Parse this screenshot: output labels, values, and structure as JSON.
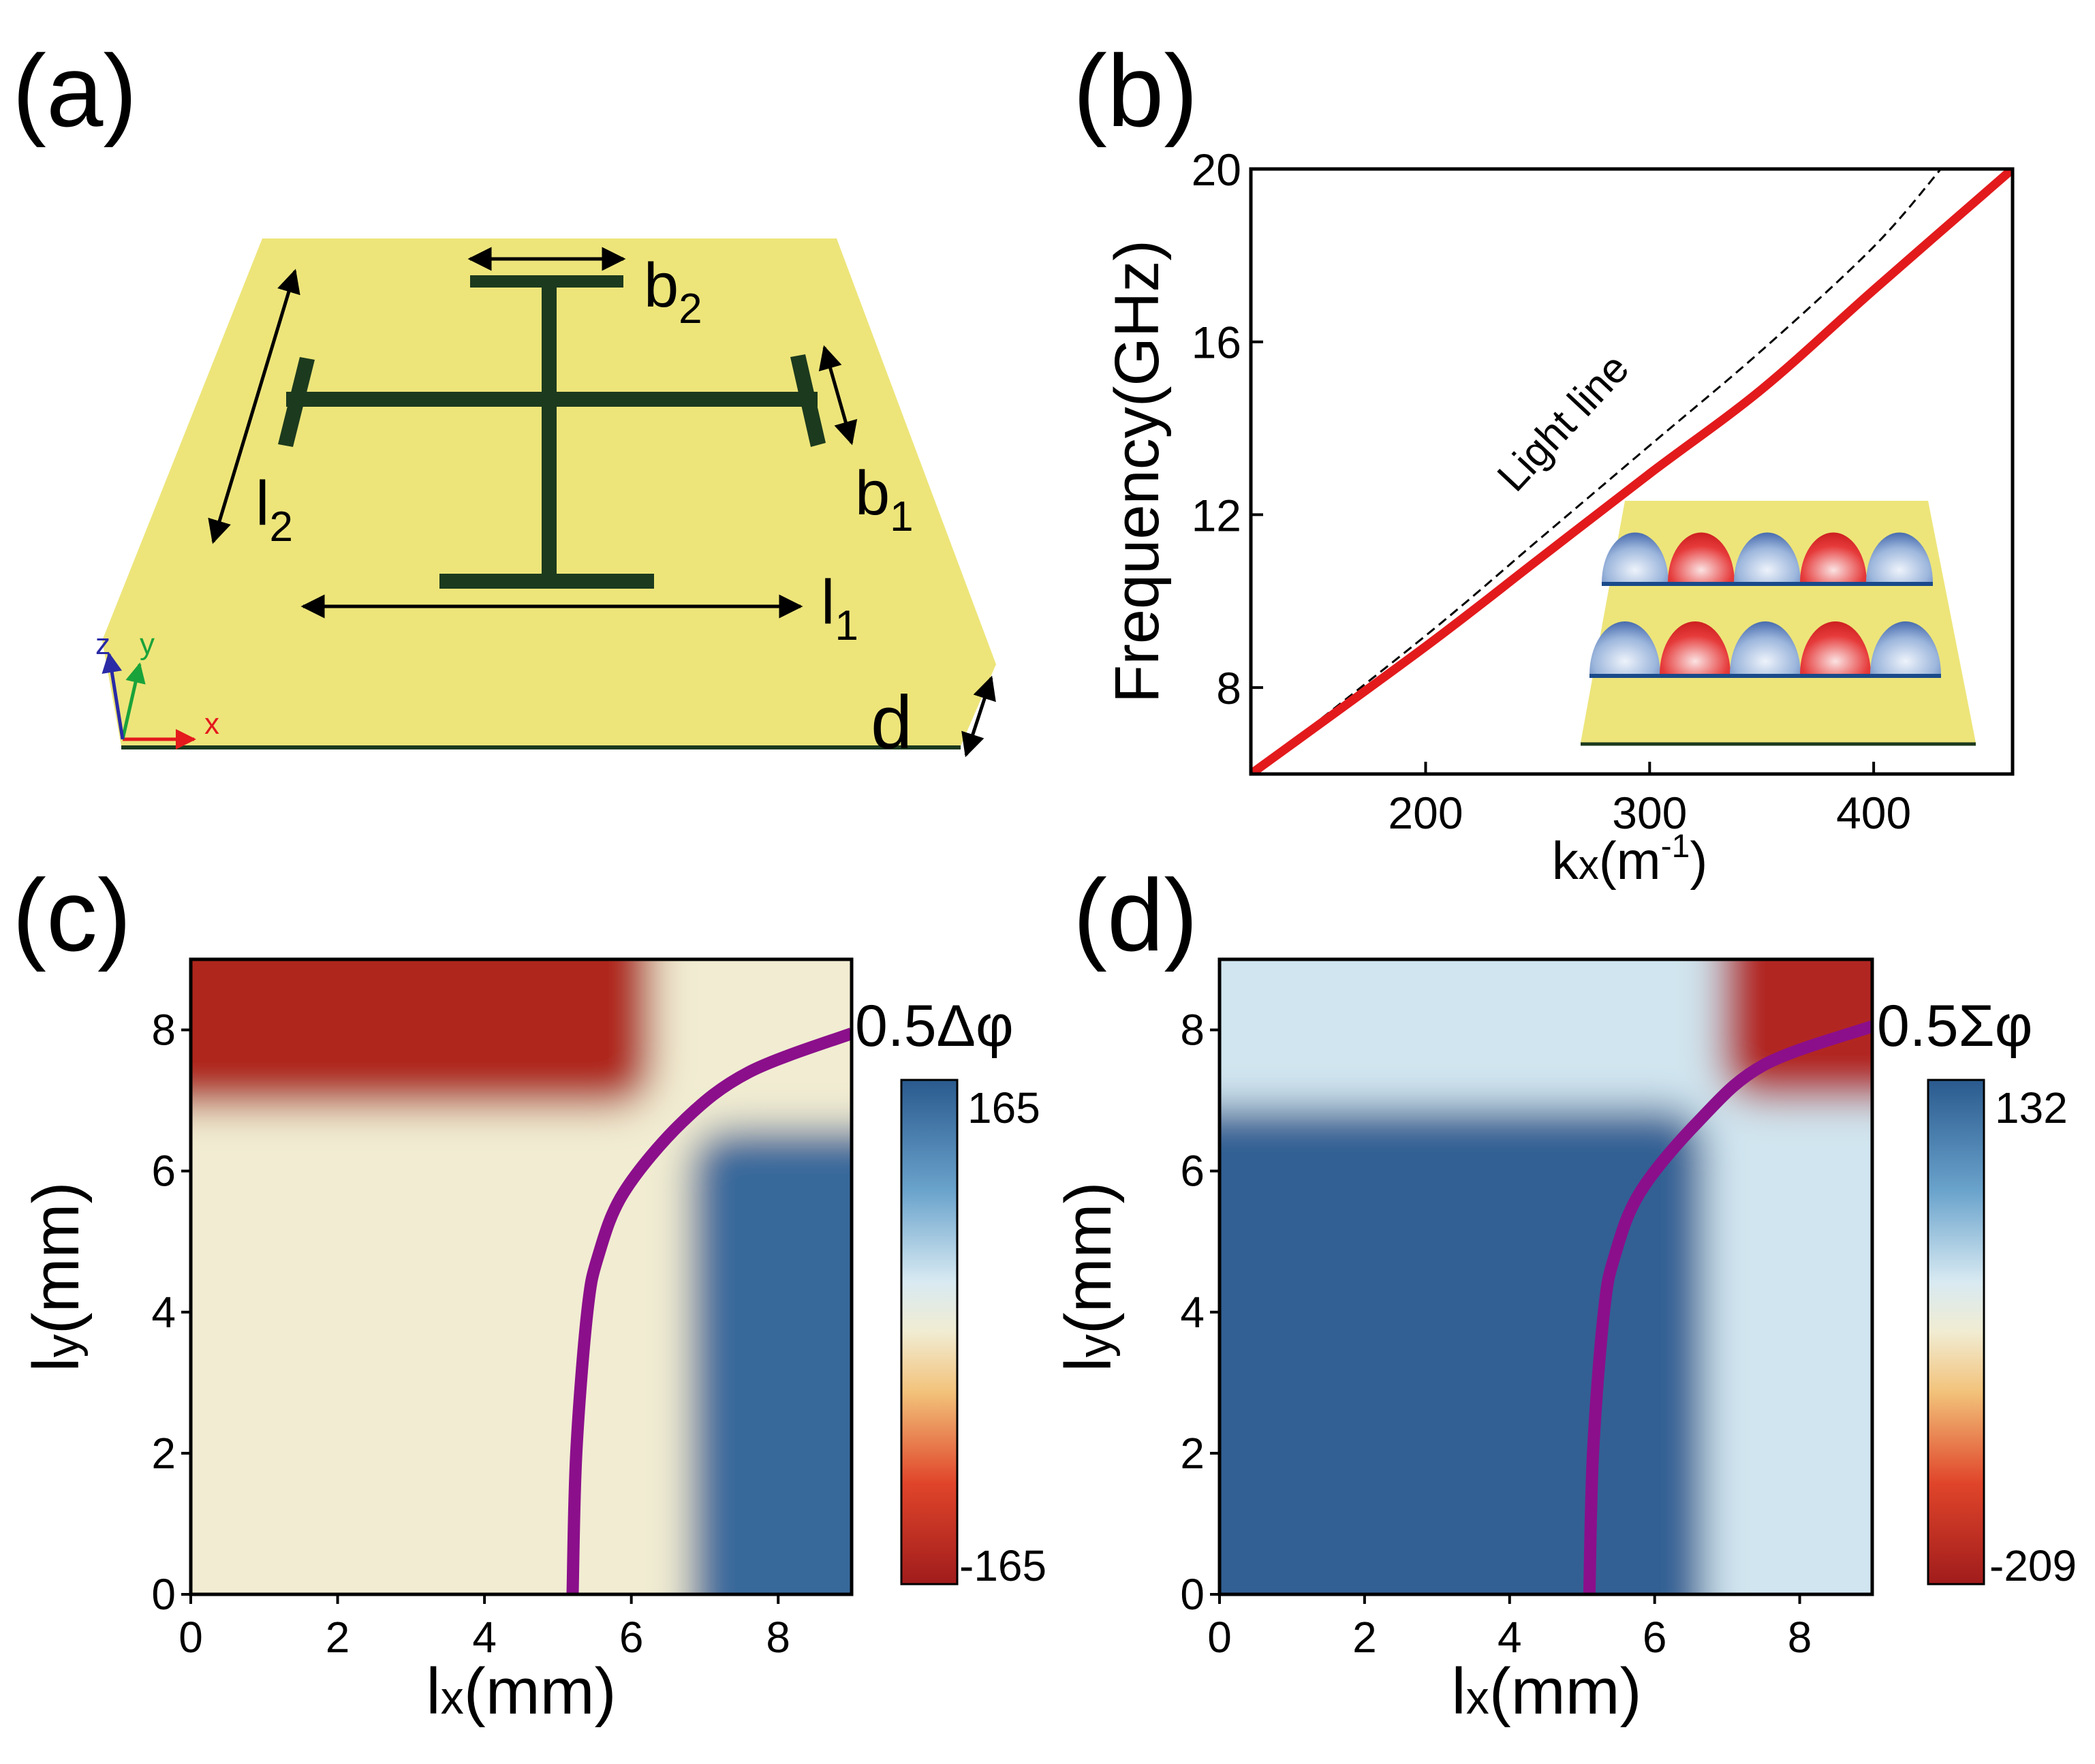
{
  "figure": {
    "panels": {
      "a": {
        "label": "(a)"
      },
      "b": {
        "label": "(b)"
      },
      "c": {
        "label": "(c)"
      },
      "d": {
        "label": "(d)"
      }
    },
    "diagram": {
      "labels": {
        "b2": "b",
        "b2_sub": "2",
        "b1": "b",
        "b1_sub": "1",
        "l2": "l",
        "l2_sub": "2",
        "l1": "l",
        "l1_sub": "1",
        "d": "d"
      },
      "axes": {
        "x": "x",
        "y": "y",
        "z": "z"
      },
      "colors": {
        "substrate": "#ede57a",
        "metal": "#1c3a1e"
      }
    },
    "colorbars": {
      "c": {
        "title": "0.5Δφ",
        "max_label": "165",
        "min_label": "-165"
      },
      "d": {
        "title": "0.5Σφ",
        "max_label": "132",
        "min_label": "-209"
      }
    }
  },
  "chart_data": [
    {
      "id": "b",
      "type": "line",
      "xlabel": "k",
      "xlabel_sub": "x",
      "xlabel_unit_open": "(m",
      "xlabel_unit_sup": "-1",
      "xlabel_unit_close": ")",
      "ylabel": "Frequency(GHz)",
      "xlim": [
        122,
        462
      ],
      "ylim": [
        6,
        20
      ],
      "xticks": [
        200,
        300,
        400
      ],
      "yticks": [
        8,
        12,
        16,
        20
      ],
      "annotation": "Light line",
      "series": [
        {
          "name": "dispersion",
          "color": "#e31a1c",
          "x": [
            122,
            200,
            250,
            300,
            350,
            400,
            462
          ],
          "y": [
            6.0,
            8.95,
            10.95,
            12.95,
            14.9,
            17.2,
            20.0
          ]
        },
        {
          "name": "Light line",
          "color": "#000000",
          "style": "dashed",
          "x": [
            122,
            200,
            250,
            300,
            350,
            400,
            430
          ],
          "y": [
            6.0,
            9.2,
            11.4,
            13.6,
            15.8,
            18.2,
            20.0
          ]
        }
      ]
    },
    {
      "id": "c",
      "type": "heatmap",
      "xlabel": "l",
      "xlabel_sub": "x",
      "xlabel_unit": "(mm)",
      "ylabel": "l",
      "ylabel_sub": "y",
      "ylabel_unit": "(mm)",
      "xlim": [
        0,
        9
      ],
      "ylim": [
        0,
        9
      ],
      "xticks": [
        0,
        2,
        4,
        6,
        8
      ],
      "yticks": [
        0,
        2,
        4,
        6,
        8
      ],
      "colorbar_range": [
        -165,
        165
      ],
      "regions": [
        {
          "value": -150,
          "lx": [
            0,
            6.3
          ],
          "ly": [
            6.9,
            9
          ]
        },
        {
          "value": 150,
          "lx": [
            6.8,
            9
          ],
          "ly": [
            0,
            6.6
          ]
        },
        {
          "value": 0,
          "lx": [
            0,
            9
          ],
          "ly": [
            0,
            9
          ]
        }
      ],
      "curve": {
        "color": "#8b0f8b",
        "lx": [
          5.2,
          5.25,
          5.4,
          5.55,
          5.9,
          6.7,
          7.6,
          9.0
        ],
        "ly": [
          0,
          2,
          4,
          4.8,
          5.7,
          6.7,
          7.4,
          7.95
        ]
      }
    },
    {
      "id": "d",
      "type": "heatmap",
      "xlabel": "l",
      "xlabel_sub": "x",
      "xlabel_unit": "(mm)",
      "ylabel": "l",
      "ylabel_sub": "y",
      "ylabel_unit": "(mm)",
      "xlim": [
        0,
        9
      ],
      "ylim": [
        0,
        9
      ],
      "xticks": [
        0,
        2,
        4,
        6,
        8
      ],
      "yticks": [
        0,
        2,
        4,
        6,
        8
      ],
      "colorbar_range": [
        -209,
        132
      ],
      "regions": [
        {
          "value": 125,
          "lx": [
            0,
            6.7
          ],
          "ly": [
            0,
            6.9
          ]
        },
        {
          "value": -190,
          "lx": [
            6.9,
            9
          ],
          "ly": [
            7.0,
            9
          ]
        },
        {
          "value": 0,
          "lx": [
            0,
            9
          ],
          "ly": [
            0,
            9
          ]
        }
      ],
      "curve": {
        "color": "#8b0f8b",
        "lx": [
          5.1,
          5.15,
          5.3,
          5.45,
          5.8,
          6.6,
          7.5,
          9.0
        ],
        "ly": [
          0,
          2,
          4,
          4.8,
          5.7,
          6.7,
          7.5,
          8.05
        ]
      }
    }
  ]
}
